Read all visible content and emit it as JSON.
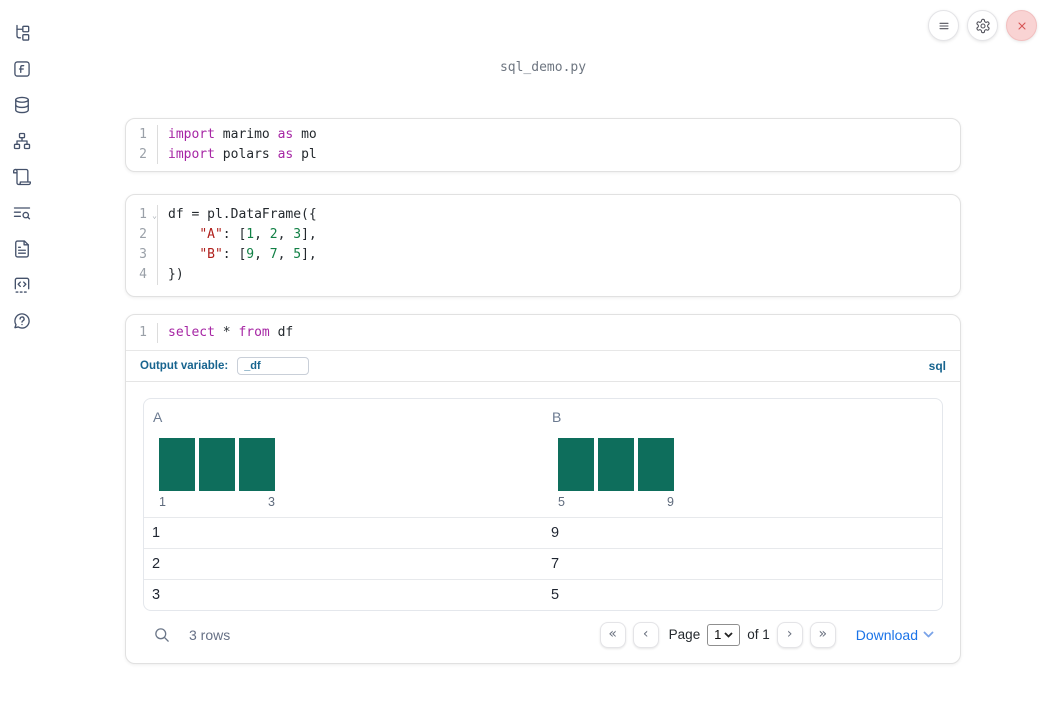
{
  "window": {
    "title": "sql_demo.py"
  },
  "topbar": {
    "buttons": [
      {
        "name": "notebook-menu-button",
        "icon": "hamburger-icon"
      },
      {
        "name": "settings-button",
        "icon": "gear-icon"
      },
      {
        "name": "shutdown-button",
        "icon": "close-icon"
      }
    ]
  },
  "sidebar": {
    "items": [
      {
        "name": "file-explorer",
        "icon": "file-tree-icon"
      },
      {
        "name": "scratchpad",
        "icon": "function-square-icon"
      },
      {
        "name": "datasources",
        "icon": "database-icon"
      },
      {
        "name": "dependency-graph",
        "icon": "sitemap-icon"
      },
      {
        "name": "logs",
        "icon": "scroll-icon"
      },
      {
        "name": "variables-search",
        "icon": "list-search-icon"
      },
      {
        "name": "documentation",
        "icon": "file-text-icon"
      },
      {
        "name": "snippets",
        "icon": "code-square-icon"
      },
      {
        "name": "help",
        "icon": "help-bubble-icon"
      }
    ]
  },
  "code_cells": [
    {
      "lines": [
        {
          "n": "1",
          "tokens": [
            [
              "kw",
              "import"
            ],
            [
              "pl",
              " marimo "
            ],
            [
              "kw",
              "as"
            ],
            [
              "pl",
              " mo"
            ]
          ]
        },
        {
          "n": "2",
          "tokens": [
            [
              "kw",
              "import"
            ],
            [
              "pl",
              " polars "
            ],
            [
              "kw",
              "as"
            ],
            [
              "pl",
              " pl"
            ]
          ]
        }
      ]
    },
    {
      "lines": [
        {
          "n": "1",
          "fold": true,
          "tokens": [
            [
              "pl",
              "df = pl.DataFrame({"
            ]
          ]
        },
        {
          "n": "2",
          "tokens": [
            [
              "pl",
              "    "
            ],
            [
              "str",
              "\"A\""
            ],
            [
              "pl",
              ": ["
            ],
            [
              "num",
              "1"
            ],
            [
              "pl",
              ", "
            ],
            [
              "num",
              "2"
            ],
            [
              "pl",
              ", "
            ],
            [
              "num",
              "3"
            ],
            [
              "pl",
              "],"
            ]
          ]
        },
        {
          "n": "3",
          "tokens": [
            [
              "pl",
              "    "
            ],
            [
              "str",
              "\"B\""
            ],
            [
              "pl",
              ": ["
            ],
            [
              "num",
              "9"
            ],
            [
              "pl",
              ", "
            ],
            [
              "num",
              "7"
            ],
            [
              "pl",
              ", "
            ],
            [
              "num",
              "5"
            ],
            [
              "pl",
              "],"
            ]
          ]
        },
        {
          "n": "4",
          "tokens": [
            [
              "pl",
              "})"
            ]
          ]
        }
      ]
    }
  ],
  "sql_cell": {
    "lines": [
      {
        "n": "1",
        "tokens": [
          [
            "kw",
            "select"
          ],
          [
            "pl",
            " * "
          ],
          [
            "kw",
            "from"
          ],
          [
            "pl",
            " df"
          ]
        ]
      }
    ],
    "output_variable_label": "Output variable:",
    "output_variable_value": "_df",
    "language_badge": "sql"
  },
  "table": {
    "columns": [
      {
        "name": "A",
        "histogram": {
          "values": [
            1,
            1,
            1
          ],
          "min_label": "1",
          "max_label": "3"
        }
      },
      {
        "name": "B",
        "histogram": {
          "values": [
            1,
            1,
            1
          ],
          "min_label": "5",
          "max_label": "9"
        }
      }
    ],
    "rows": [
      [
        "1",
        "9"
      ],
      [
        "2",
        "7"
      ],
      [
        "3",
        "5"
      ]
    ],
    "footer": {
      "row_count": "3 rows",
      "pager_left": [
        {
          "name": "first-page-button",
          "glyph": "«"
        },
        {
          "name": "prev-page-button",
          "glyph": "‹"
        }
      ],
      "page_label": "Page",
      "page_value": "1",
      "of_label": "of 1",
      "pager_right": [
        {
          "name": "next-page-button",
          "glyph": "›"
        },
        {
          "name": "last-page-button",
          "glyph": "»"
        }
      ],
      "download_label": "Download"
    }
  },
  "colors": {
    "keyword": "#a626a4",
    "string": "#b0201c",
    "number": "#118045",
    "hist_bar": "#0e6e5c",
    "sql_meta_blue": "#17648f",
    "link_blue": "#1a73e8",
    "close_red": "#d65454"
  }
}
